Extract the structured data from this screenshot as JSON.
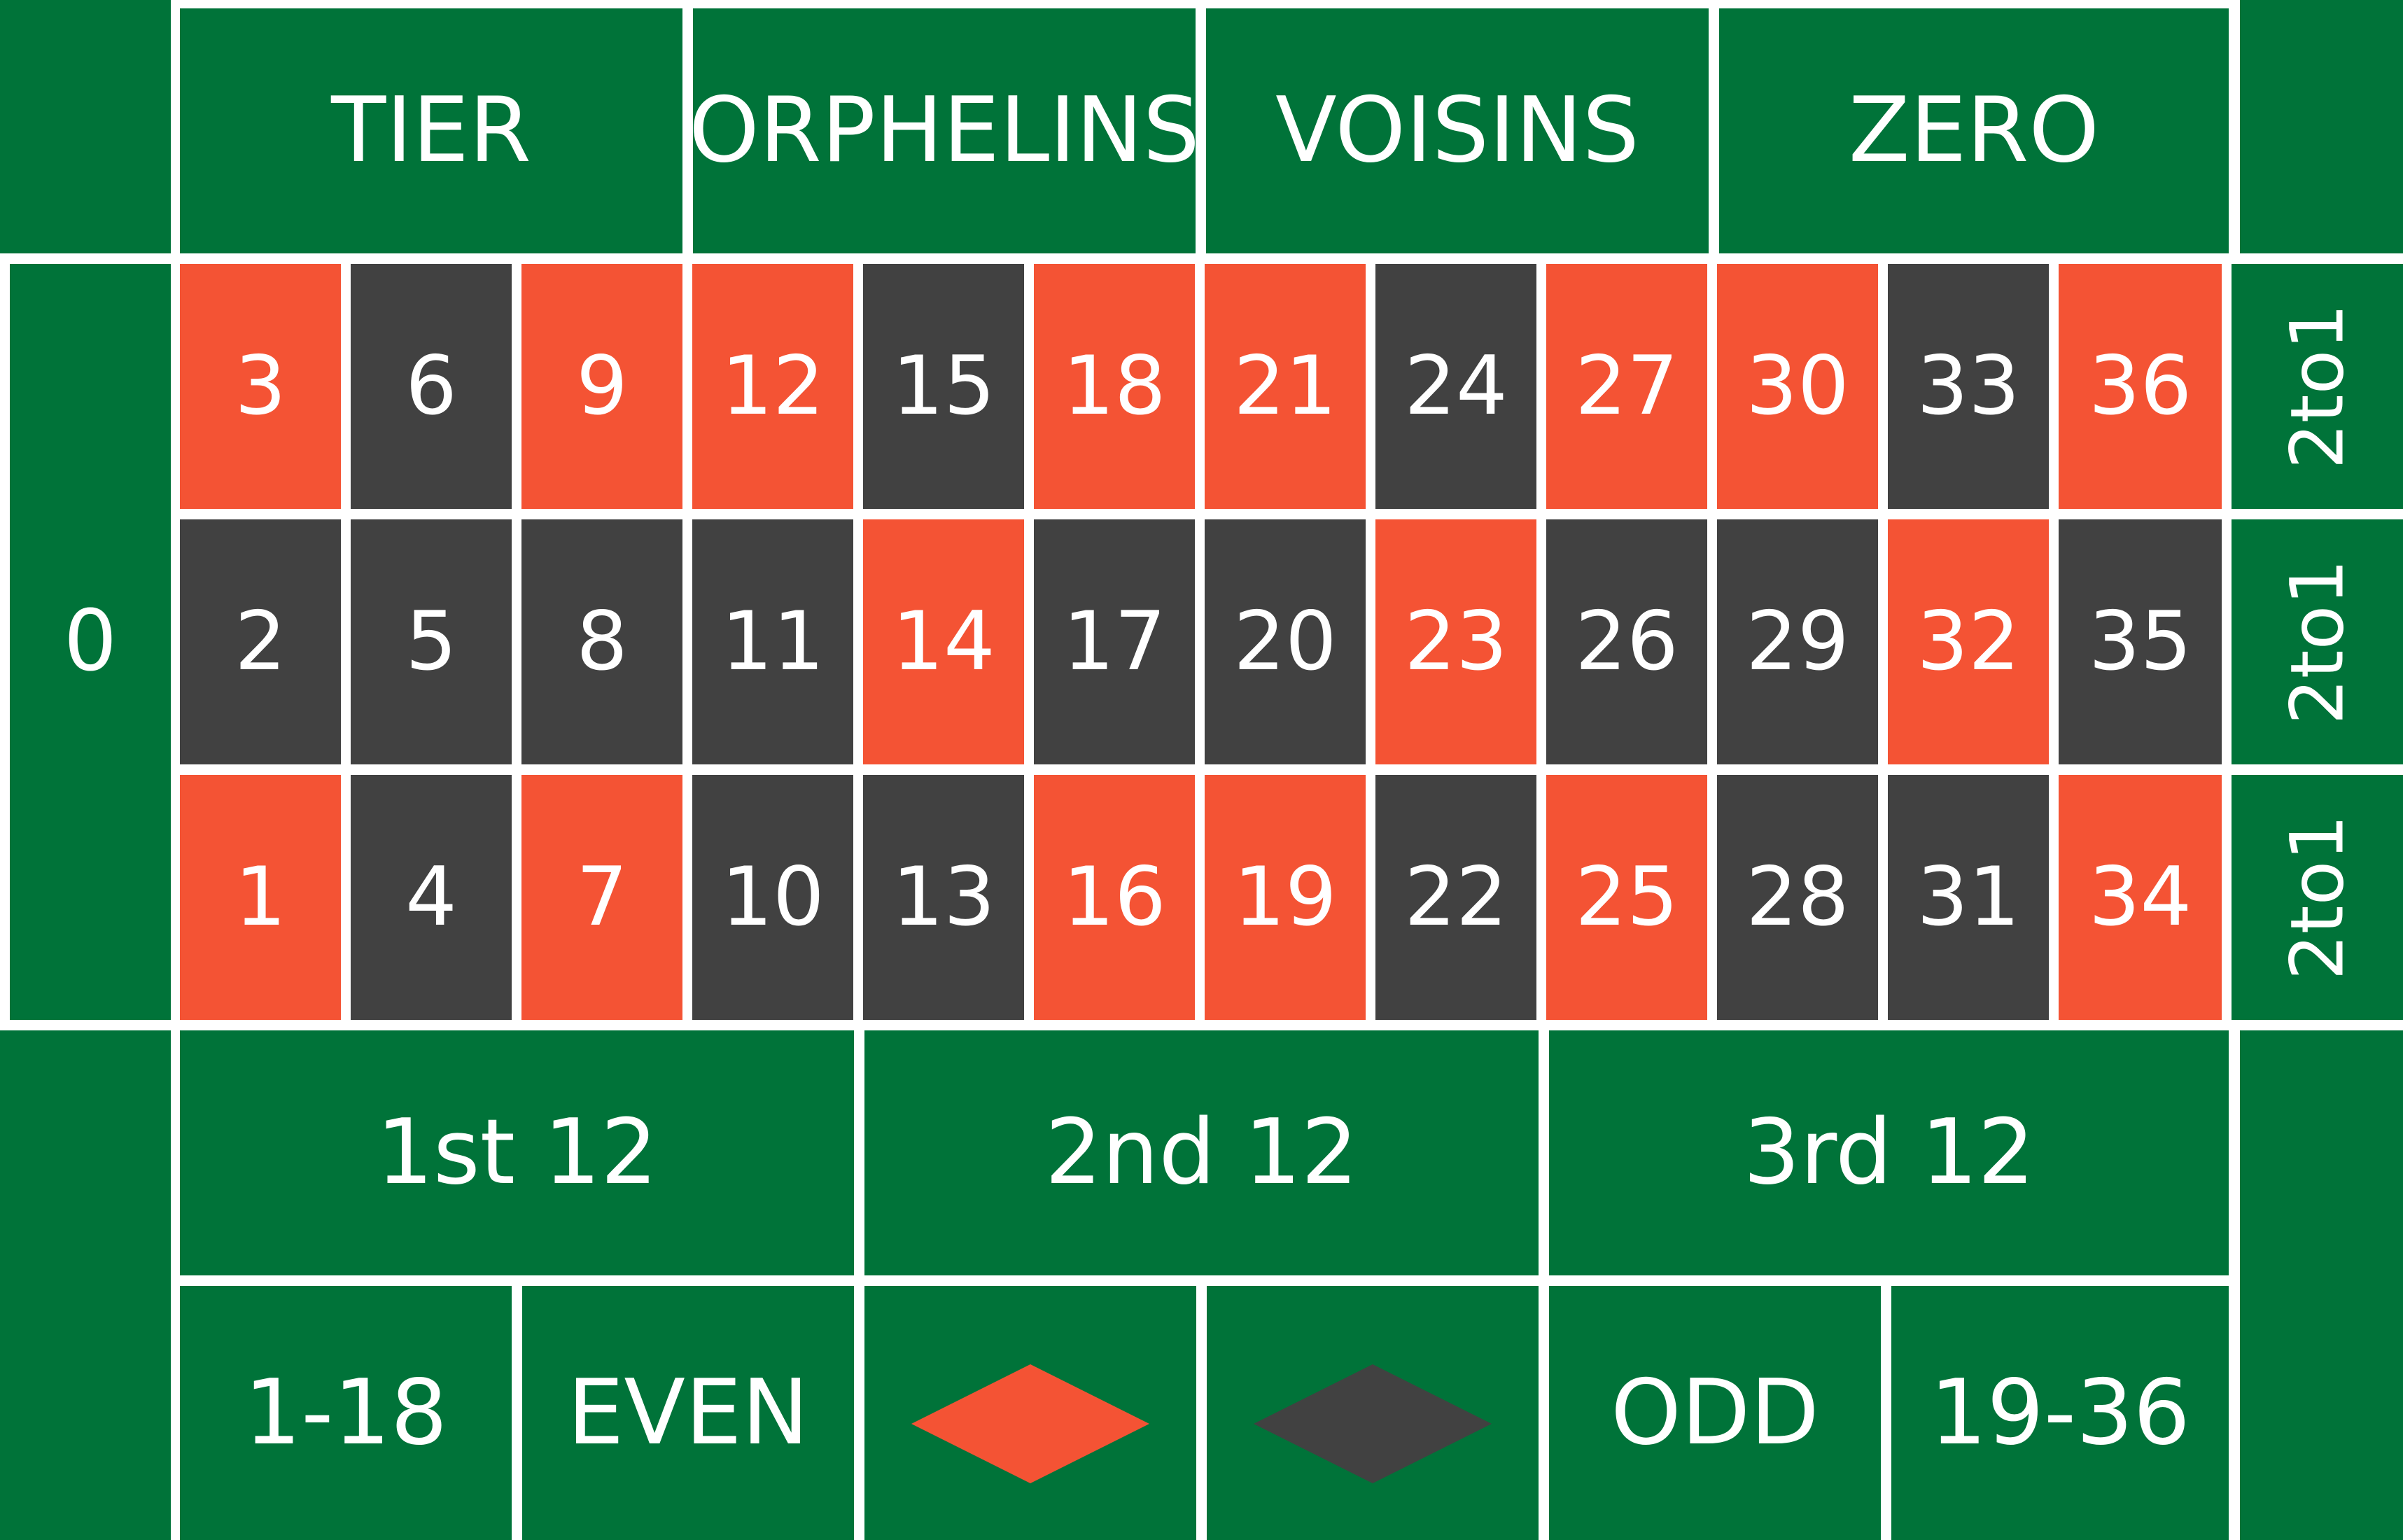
{
  "colors": {
    "felt": "#007339",
    "red": "#F45334",
    "black": "#414141",
    "lines": "#FFFFFF",
    "text": "#FFFFFF"
  },
  "announced_bets": [
    "TIER",
    "ORPHELINS",
    "VOISINS",
    "ZERO"
  ],
  "zero": "0",
  "number_grid": {
    "rows": [
      {
        "cells": [
          {
            "n": "3",
            "color": "red"
          },
          {
            "n": "6",
            "color": "black"
          },
          {
            "n": "9",
            "color": "red"
          },
          {
            "n": "12",
            "color": "red"
          },
          {
            "n": "15",
            "color": "black"
          },
          {
            "n": "18",
            "color": "red"
          },
          {
            "n": "21",
            "color": "red"
          },
          {
            "n": "24",
            "color": "black"
          },
          {
            "n": "27",
            "color": "red"
          },
          {
            "n": "30",
            "color": "red"
          },
          {
            "n": "33",
            "color": "black"
          },
          {
            "n": "36",
            "color": "red"
          }
        ]
      },
      {
        "cells": [
          {
            "n": "2",
            "color": "black"
          },
          {
            "n": "5",
            "color": "black"
          },
          {
            "n": "8",
            "color": "black"
          },
          {
            "n": "11",
            "color": "black"
          },
          {
            "n": "14",
            "color": "red"
          },
          {
            "n": "17",
            "color": "black"
          },
          {
            "n": "20",
            "color": "black"
          },
          {
            "n": "23",
            "color": "red"
          },
          {
            "n": "26",
            "color": "black"
          },
          {
            "n": "29",
            "color": "black"
          },
          {
            "n": "32",
            "color": "red"
          },
          {
            "n": "35",
            "color": "black"
          }
        ]
      },
      {
        "cells": [
          {
            "n": "1",
            "color": "red"
          },
          {
            "n": "4",
            "color": "black"
          },
          {
            "n": "7",
            "color": "red"
          },
          {
            "n": "10",
            "color": "black"
          },
          {
            "n": "13",
            "color": "black"
          },
          {
            "n": "16",
            "color": "red"
          },
          {
            "n": "19",
            "color": "red"
          },
          {
            "n": "22",
            "color": "black"
          },
          {
            "n": "25",
            "color": "red"
          },
          {
            "n": "28",
            "color": "black"
          },
          {
            "n": "31",
            "color": "black"
          },
          {
            "n": "34",
            "color": "red"
          }
        ]
      }
    ]
  },
  "column_bets": [
    "2to1",
    "2to1",
    "2to1"
  ],
  "dozens": [
    "1st 12",
    "2nd 12",
    "3rd 12"
  ],
  "even_money": [
    "1-18",
    "EVEN",
    "ODD",
    "19-36"
  ],
  "color_bets": [
    "red",
    "black"
  ]
}
